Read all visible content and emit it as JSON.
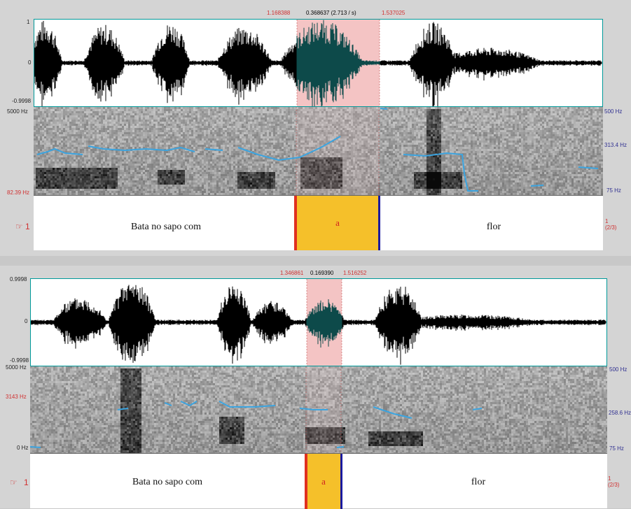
{
  "panel1": {
    "sel_start": "1.168388",
    "sel_duration": "0.368637 (2.713 / s)",
    "sel_end": "1.537025",
    "amp_max": "1",
    "amp_zero": "0",
    "amp_min": "-0.9998",
    "spec_top": "5000 Hz",
    "spec_bottom": "82.39 Hz",
    "pitch_top": "500 Hz",
    "pitch_mid": "313.4 Hz",
    "pitch_bottom": "75 Hz",
    "tier_number": "1",
    "tier_index": "1",
    "tier_count": "(2/3)",
    "interval_1": "Bata no sapo com",
    "interval_2": "a",
    "interval_3": "flor"
  },
  "panel2": {
    "sel_start": "1.346861",
    "sel_duration": "0.169390",
    "sel_end": "1.516252",
    "amp_max": "0.9998",
    "amp_zero": "0",
    "amp_min": "-0.9998",
    "spec_top": "5000 Hz",
    "spec_cursor": "3143 Hz",
    "spec_bottom": "0 Hz",
    "pitch_top": "500 Hz",
    "pitch_mid": "258.6 Hz",
    "pitch_bottom": "75 Hz",
    "tier_number": "1",
    "tier_index": "1",
    "tier_count": "(2/3)",
    "interval_1": "Bata no sapo com",
    "interval_2": "a",
    "interval_3": "flor"
  },
  "icons": {
    "tier_pointer": "pointing-hand-icon"
  },
  "colors": {
    "selection": "#f4c4c4",
    "pitch": "#3ba4e0",
    "boundary_start": "#e03020",
    "boundary_end": "#1a1aa0",
    "segment": "#f5c02a",
    "wave_border": "#009999"
  }
}
